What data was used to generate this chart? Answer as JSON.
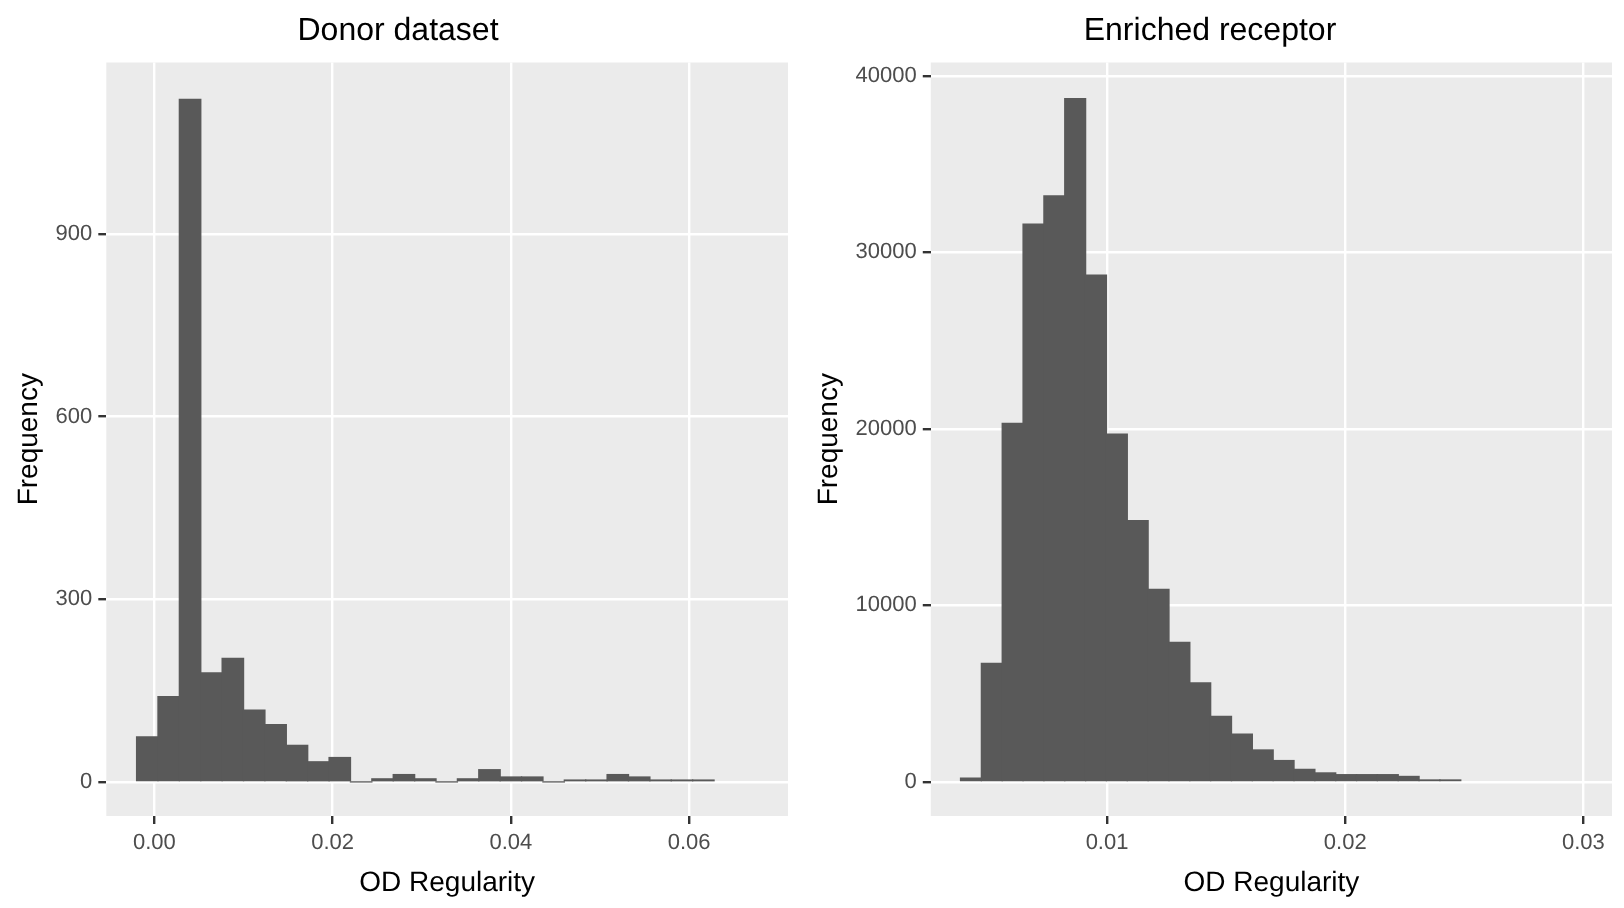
{
  "chart_data": [
    {
      "type": "histogram",
      "title": "Donor dataset",
      "xlabel": "OD Regularity",
      "ylabel": "Frequency",
      "color": "#595959",
      "bins": [
        -0.002,
        0.0004,
        0.0028,
        0.0052,
        0.0076,
        0.01,
        0.0124,
        0.0148,
        0.0172,
        0.0196,
        0.022,
        0.0244,
        0.0268,
        0.0292,
        0.0316,
        0.034,
        0.0364,
        0.0388,
        0.0412,
        0.0436,
        0.046,
        0.0484,
        0.0508,
        0.0532,
        0.0556,
        0.058,
        0.0604,
        0.0628
      ],
      "values": [
        74,
        140,
        1121,
        179,
        203,
        118,
        94,
        60,
        33,
        40,
        0,
        5,
        12,
        5,
        0,
        5,
        20,
        8,
        8,
        0,
        3,
        3,
        12,
        8,
        3,
        3,
        3
      ],
      "xlim": [
        -0.0054,
        0.0711
      ],
      "xticks": [
        {
          "value": 0,
          "label": "0.00"
        },
        0.02,
        0.04,
        0.06
      ],
      "ylim": [
        -56,
        1182
      ],
      "yticks": [
        0,
        300,
        600,
        900
      ],
      "grid": true
    },
    {
      "type": "histogram",
      "title": "Enriched receptor",
      "xlabel": "OD Regularity",
      "ylabel": "Frequency",
      "color": "#595959",
      "bins": [
        0.00385,
        0.004725,
        0.0056,
        0.006475,
        0.00735,
        0.008225,
        0.0091,
        0.009975,
        0.01085,
        0.011725,
        0.0126,
        0.013475,
        0.01435,
        0.015225,
        0.0161,
        0.016975,
        0.01785,
        0.018725,
        0.0196,
        0.020475,
        0.02135,
        0.022225,
        0.0231,
        0.023975,
        0.02485
      ],
      "values": [
        200,
        6700,
        20300,
        31600,
        33200,
        38700,
        28700,
        19700,
        14800,
        10900,
        7900,
        5600,
        3700,
        2700,
        1800,
        1200,
        700,
        500,
        400,
        400,
        400,
        300,
        100,
        100
      ],
      "xlim": [
        0.0026,
        0.0312
      ],
      "xticks": [
        0.01,
        0.02,
        0.03
      ],
      "ylim": [
        -1940,
        40760
      ],
      "yticks": [
        0,
        10000,
        20000,
        30000,
        40000
      ],
      "grid": true
    }
  ]
}
